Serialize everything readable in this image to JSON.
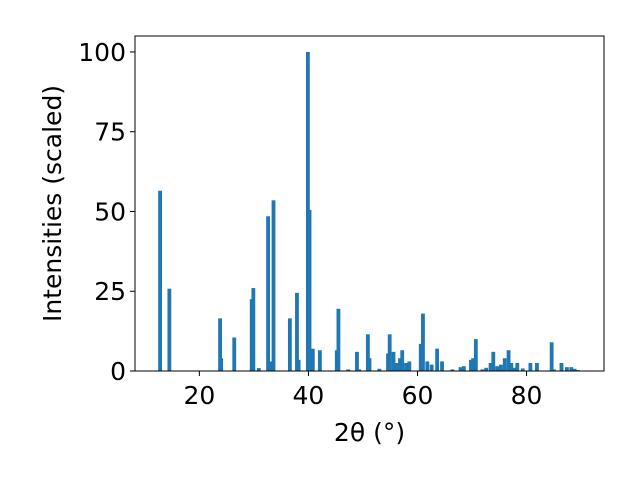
{
  "chart_data": {
    "type": "bar",
    "title": "",
    "xlabel": "2θ (°)",
    "ylabel": "Intensities (scaled)",
    "xlim": [
      8.2,
      94.2
    ],
    "ylim": [
      0,
      105
    ],
    "xticks": [
      20,
      40,
      60,
      80
    ],
    "yticks": [
      0,
      25,
      50,
      75,
      100
    ],
    "grid": false,
    "legend": "none",
    "bar_color": "#1f77b4",
    "bar_width": 0.7,
    "series": [
      {
        "x": [
          12.8,
          14.5,
          23.8,
          24.0,
          26.4,
          29.6,
          29.9,
          30.9,
          32.6,
          33.1,
          33.6,
          36.6,
          37.9,
          38.2,
          39.9,
          40.2,
          40.8,
          42.1,
          45.2,
          45.5,
          47.3,
          48.9,
          49.3,
          50.9,
          51.2,
          53.0,
          54.6,
          54.9,
          55.6,
          56.2,
          56.8,
          57.2,
          57.9,
          58.5,
          60.6,
          61.0,
          61.8,
          62.6,
          63.6,
          64.5,
          66.4,
          67.9,
          68.5,
          69.8,
          70.2,
          70.7,
          71.9,
          72.6,
          73.4,
          73.9,
          74.6,
          75.3,
          76.0,
          76.7,
          77.2,
          77.8,
          78.3,
          79.3,
          80.7,
          81.9,
          84.6,
          85.0,
          86.4,
          87.4,
          88.2,
          88.8,
          89.4
        ],
        "values": [
          56.5,
          25.8,
          16.5,
          4.0,
          10.5,
          22.5,
          26.0,
          0.9,
          48.5,
          3.0,
          53.5,
          16.5,
          24.5,
          3.5,
          100.0,
          50.5,
          7.0,
          6.5,
          6.5,
          19.5,
          0.5,
          6.0,
          0.5,
          11.5,
          4.0,
          0.7,
          5.5,
          11.5,
          6.0,
          2.5,
          4.0,
          6.5,
          2.5,
          3.0,
          8.5,
          18.0,
          3.0,
          2.0,
          7.0,
          3.0,
          0.5,
          1.2,
          1.5,
          3.5,
          4.0,
          10.0,
          0.5,
          1.0,
          2.5,
          6.0,
          1.5,
          2.0,
          4.0,
          6.5,
          2.5,
          1.0,
          2.5,
          0.8,
          2.5,
          2.5,
          9.0,
          0.5,
          2.5,
          1.2,
          1.2,
          0.7,
          0.3
        ]
      }
    ]
  }
}
